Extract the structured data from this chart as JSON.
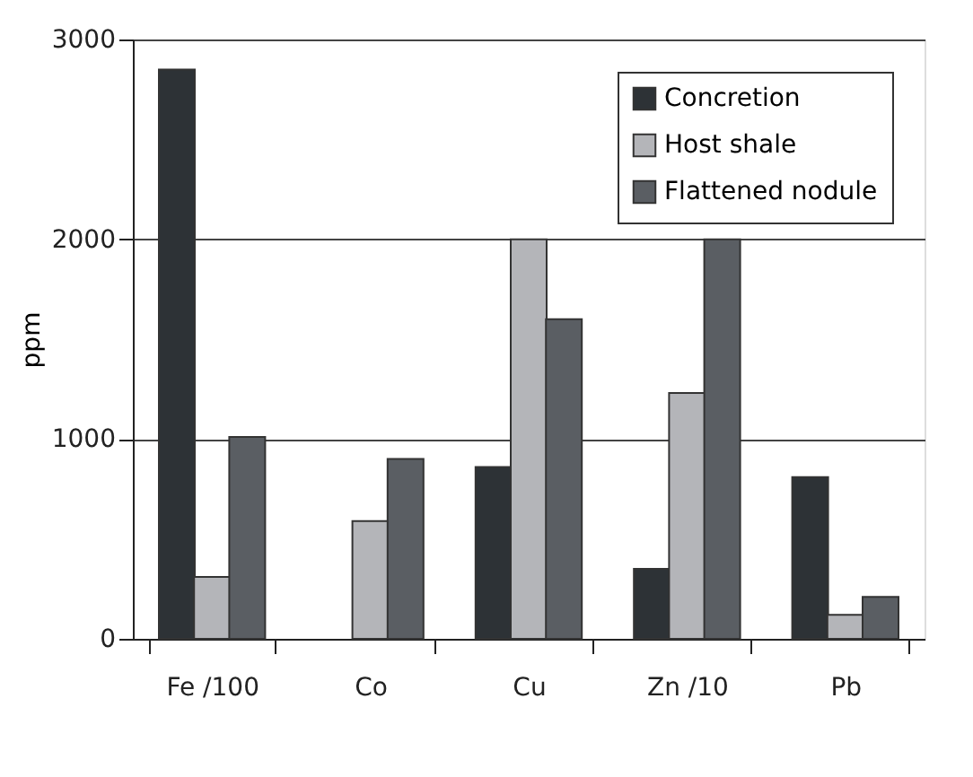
{
  "chart_data": {
    "type": "bar",
    "ylabel": "ppm",
    "categories": [
      "Fe /100",
      "Co",
      "Cu",
      "Zn /10",
      "Pb"
    ],
    "series": [
      {
        "name": "Concretion",
        "color": "#2d3236",
        "values": [
          2850,
          null,
          860,
          350,
          810
        ]
      },
      {
        "name": "Host shale",
        "color": "#b4b5b9",
        "values": [
          310,
          590,
          2000,
          1230,
          120
        ]
      },
      {
        "name": "Flattened nodule",
        "color": "#5a5e63",
        "values": [
          1010,
          900,
          1600,
          2000,
          210
        ]
      }
    ],
    "ylim": [
      0,
      3000
    ],
    "yticks": [
      0,
      1000,
      2000,
      3000
    ],
    "grid": "y",
    "legend": "top right"
  }
}
